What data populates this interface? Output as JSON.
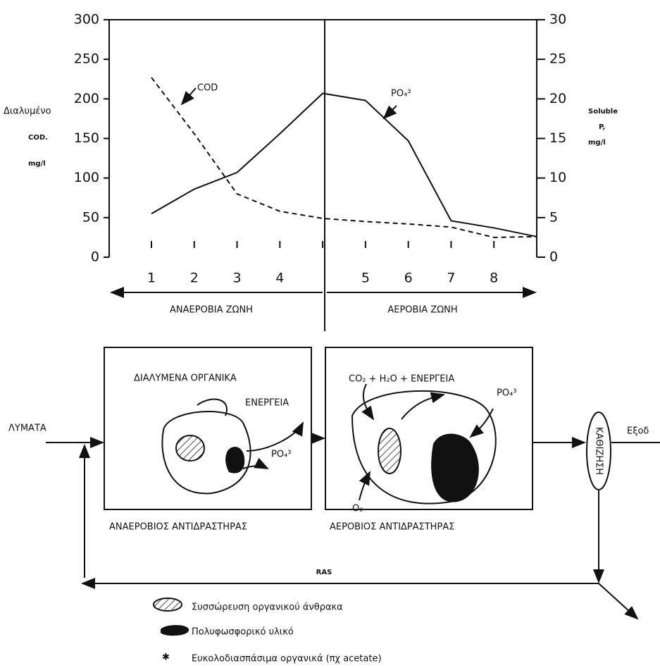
{
  "chart_data": {
    "type": "line",
    "categories": [
      "1",
      "2",
      "3",
      "4",
      null,
      "5",
      "6",
      "7",
      "8",
      null
    ],
    "series": [
      {
        "name": "COD",
        "color": "#111",
        "dash": true,
        "values": [
          227,
          156,
          80,
          58,
          49,
          45,
          42,
          38,
          25,
          26
        ]
      },
      {
        "name": "PO₄³",
        "color": "#111",
        "dash": false,
        "axis": "y2",
        "values": [
          5.5,
          8.6,
          10.7,
          15.6,
          20.7,
          19.8,
          14.7,
          4.6,
          3.7,
          2.6
        ]
      }
    ],
    "ylim": [
      0,
      300
    ],
    "yticks": [
      0,
      50,
      100,
      150,
      200,
      250,
      300
    ],
    "y2lim": [
      0,
      30
    ],
    "y2ticks": [
      0,
      5,
      10,
      15,
      20,
      25,
      30
    ],
    "ylabel": [
      "Διαλυμένο",
      "COD.",
      "mg/l"
    ],
    "y2label": [
      "Soluble",
      "P,",
      "mg/l"
    ],
    "zones": [
      "ΑΝΑΕΡΟΒΙΑ ΖΩΝΗ",
      "ΑΕΡΟΒΙΑ ΖΩΝΗ"
    ]
  },
  "diagram": {
    "influent": "ΛΥΜΑΤΑ",
    "effluent": "Εξοδ",
    "settling": "ΚΑΘΙΖΗΣΗ",
    "ras": "RAS",
    "anaerobic": {
      "label": "ΑΝΑΕΡΟΒΙΟΣ ΑΝΤΙΔΡΑΣΤΗΡΑΣ",
      "organics": "ΔΙΑΛΥΜΕΝΑ ΟΡΓΑΝΙΚΑ",
      "energy": "ΕΝΕΡΓΕΙΑ",
      "po4": "PO₄³"
    },
    "aerobic": {
      "label": "ΑΕΡΟΒΙΟΣ ΑΝΤΙΔΡΑΣΤΗΡΑΣ",
      "products": "CO₂ + H₂O + ΕΝΕΡΓΕΙΑ",
      "po4": "PO₄³",
      "oxygen": "O₂"
    },
    "legend": [
      "Συσσώρευση οργανικού άνθρακα",
      "Πολυφωσφορικό υλικό",
      "Ευκολοδιασπάσιμα οργανικά (πχ acetate)"
    ]
  }
}
